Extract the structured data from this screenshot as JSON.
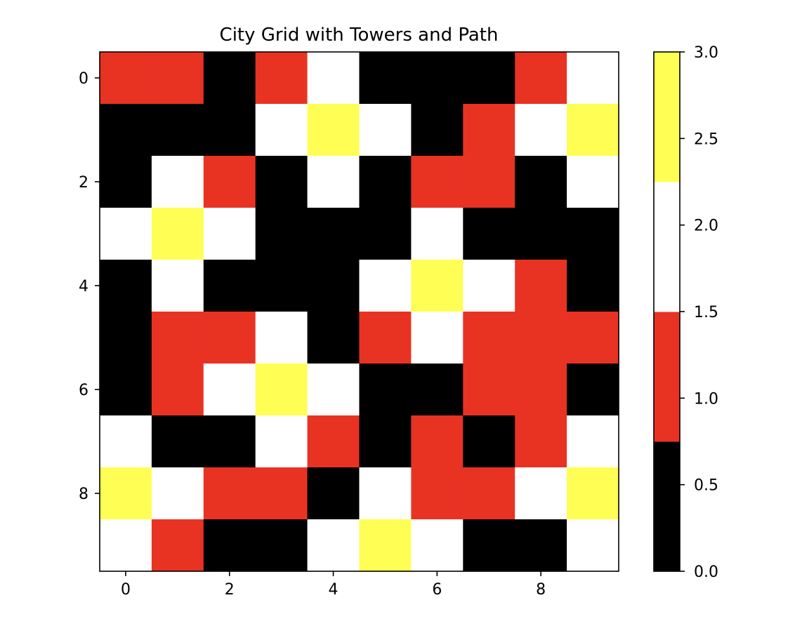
{
  "chart_data": {
    "type": "heatmap",
    "title": "City Grid with Towers and Path",
    "xlabel": "",
    "ylabel": "",
    "x_ticks": [
      "0",
      "2",
      "4",
      "6",
      "8"
    ],
    "y_ticks": [
      "0",
      "2",
      "4",
      "6",
      "8"
    ],
    "x_range": [
      -0.5,
      9.5
    ],
    "y_range": [
      -0.5,
      9.5
    ],
    "y_axis_inverted": true,
    "grid": false,
    "colormap": {
      "boundaries": [
        0,
        0.75,
        1.5,
        2.25,
        3.0
      ],
      "colors": [
        "#000000",
        "#e83323",
        "#ffffff",
        "#fffe54"
      ],
      "ticks": [
        "0.0",
        "0.5",
        "1.0",
        "1.5",
        "2.0",
        "2.5",
        "3.0"
      ],
      "range": [
        0,
        3
      ]
    },
    "values": [
      [
        1,
        1,
        0,
        1,
        2,
        0,
        0,
        0,
        1,
        2
      ],
      [
        0,
        0,
        0,
        2,
        3,
        2,
        0,
        1,
        2,
        3
      ],
      [
        0,
        2,
        1,
        0,
        2,
        0,
        1,
        1,
        0,
        2
      ],
      [
        2,
        3,
        2,
        0,
        0,
        0,
        2,
        0,
        0,
        0
      ],
      [
        0,
        2,
        0,
        0,
        0,
        2,
        3,
        2,
        1,
        0
      ],
      [
        0,
        1,
        1,
        2,
        0,
        1,
        2,
        1,
        1,
        1
      ],
      [
        0,
        1,
        2,
        3,
        2,
        0,
        0,
        1,
        1,
        0
      ],
      [
        2,
        0,
        0,
        2,
        1,
        0,
        1,
        0,
        1,
        2
      ],
      [
        3,
        2,
        1,
        1,
        0,
        2,
        1,
        1,
        2,
        3
      ],
      [
        2,
        1,
        0,
        0,
        2,
        3,
        2,
        0,
        0,
        2
      ]
    ]
  }
}
